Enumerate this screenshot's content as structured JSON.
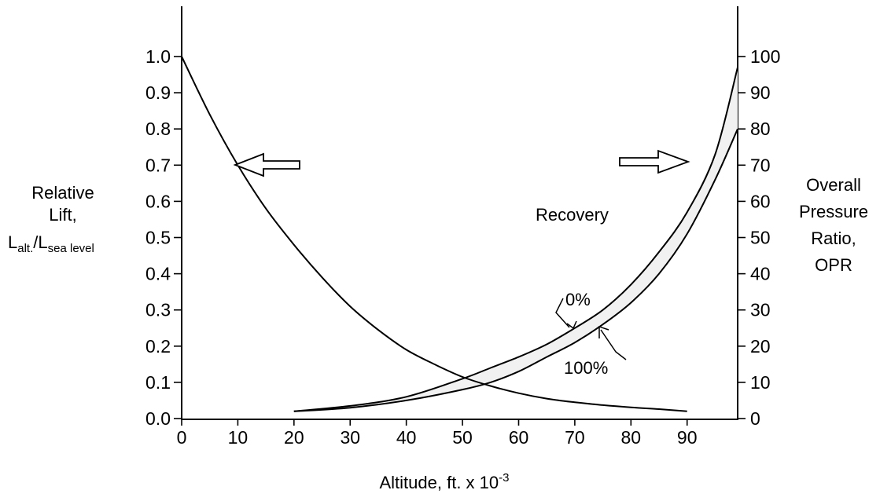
{
  "chart_data": {
    "type": "line",
    "xlabel": "Altitude, ft. x 10",
    "xlabel_sup": "-3",
    "x_ticks": [
      0,
      10,
      20,
      30,
      40,
      50,
      60,
      70,
      80,
      90
    ],
    "xlim": [
      0,
      99
    ],
    "y_left": {
      "label_lines": [
        "Relative",
        "Lift,"
      ],
      "label_formula": {
        "main1": "L",
        "sub1": "alt.",
        "sep": "/",
        "main2": "L",
        "sub2": "sea level"
      },
      "ticks": [
        "0.0",
        "0.1",
        "0.2",
        "0.3",
        "0.4",
        "0.5",
        "0.6",
        "0.7",
        "0.8",
        "0.9",
        "1.0"
      ],
      "ylim": [
        0,
        1.1
      ]
    },
    "y_right": {
      "label_lines": [
        "Overall",
        "Pressure",
        "Ratio,",
        "OPR"
      ],
      "ticks": [
        "0",
        "10",
        "20",
        "30",
        "40",
        "50",
        "60",
        "70",
        "80",
        "90",
        "100"
      ],
      "ylim": [
        0,
        110
      ]
    },
    "series": [
      {
        "axis": "left",
        "x": [
          0,
          5,
          10,
          15,
          20,
          25,
          30,
          35,
          40,
          45,
          50,
          55,
          60,
          65,
          70,
          75,
          80,
          85,
          90
        ],
        "y": [
          1.0,
          0.84,
          0.7,
          0.58,
          0.48,
          0.39,
          0.31,
          0.245,
          0.19,
          0.15,
          0.115,
          0.09,
          0.07,
          0.055,
          0.045,
          0.037,
          0.031,
          0.026,
          0.02
        ]
      },
      {
        "name": "0%",
        "axis": "right",
        "x": [
          20,
          30,
          40,
          50,
          55,
          60,
          65,
          70,
          75,
          80,
          85,
          90,
          95,
          99
        ],
        "y": [
          2,
          3.5,
          6,
          11,
          14,
          17,
          20.5,
          25,
          30,
          37,
          46,
          57,
          73,
          97
        ]
      },
      {
        "name": "100%",
        "axis": "right",
        "x": [
          20,
          30,
          40,
          50,
          55,
          60,
          65,
          70,
          75,
          80,
          85,
          90,
          95,
          99
        ],
        "y": [
          2,
          3,
          5,
          8,
          10,
          13,
          17,
          21,
          26,
          32,
          40,
          51,
          66,
          80
        ]
      }
    ],
    "annotations": {
      "group_label": "Recovery",
      "left_arrow_direction": "left",
      "right_arrow_direction": "right"
    }
  }
}
